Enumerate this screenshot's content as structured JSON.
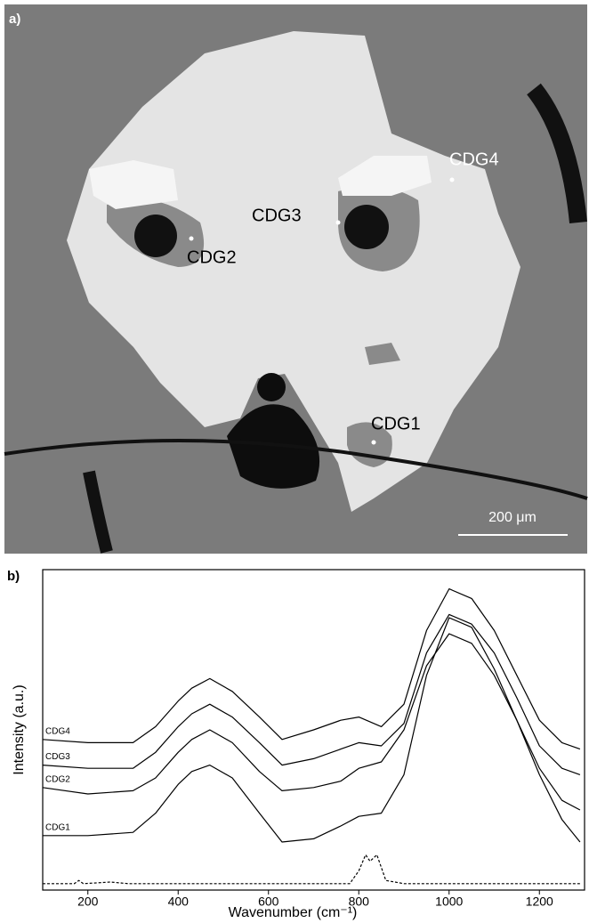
{
  "panel_a": {
    "label": "a)",
    "annotations": [
      "CDG1",
      "CDG2",
      "CDG3",
      "CDG4"
    ],
    "scale_bar": "200 μm"
  },
  "chart_data": {
    "type": "line",
    "label": "b)",
    "xlabel": "Wavenumber (cm⁻¹)",
    "ylabel": "Intensity (a.u.)",
    "xlim": [
      100,
      1300
    ],
    "xticks": [
      200,
      400,
      600,
      800,
      1000,
      1200
    ],
    "ylim": [
      0,
      100
    ],
    "series": [
      {
        "name": "CDG1",
        "color": "#000000",
        "x": [
          100,
          200,
          300,
          350,
          400,
          430,
          470,
          520,
          580,
          630,
          700,
          760,
          800,
          850,
          900,
          950,
          1000,
          1050,
          1100,
          1150,
          1200,
          1250,
          1290
        ],
        "values": [
          17,
          17,
          18,
          24,
          33,
          37,
          39,
          35,
          24,
          15,
          16,
          20,
          23,
          24,
          36,
          67,
          85,
          82,
          69,
          53,
          36,
          22,
          15
        ]
      },
      {
        "name": "CDG2",
        "color": "#000000",
        "x": [
          100,
          200,
          300,
          350,
          400,
          430,
          470,
          520,
          580,
          630,
          700,
          760,
          800,
          850,
          900,
          950,
          1000,
          1050,
          1100,
          1150,
          1200,
          1250,
          1290
        ],
        "values": [
          32,
          30,
          31,
          35,
          43,
          47,
          50,
          46,
          37,
          31,
          32,
          34,
          38,
          40,
          50,
          70,
          80,
          77,
          67,
          53,
          38,
          28,
          25
        ]
      },
      {
        "name": "CDG3",
        "color": "#000000",
        "x": [
          100,
          200,
          300,
          350,
          400,
          430,
          470,
          520,
          580,
          630,
          700,
          760,
          800,
          850,
          900,
          950,
          1000,
          1050,
          1100,
          1150,
          1200,
          1250,
          1290
        ],
        "values": [
          39,
          38,
          38,
          43,
          51,
          55,
          58,
          54,
          46,
          39,
          41,
          44,
          46,
          45,
          52,
          74,
          86,
          83,
          74,
          60,
          45,
          38,
          36
        ]
      },
      {
        "name": "CDG4",
        "color": "#000000",
        "x": [
          100,
          200,
          300,
          350,
          400,
          430,
          470,
          520,
          580,
          630,
          700,
          760,
          800,
          850,
          900,
          950,
          1000,
          1050,
          1100,
          1150,
          1200,
          1250,
          1290
        ],
        "values": [
          47,
          46,
          46,
          51,
          59,
          63,
          66,
          62,
          54,
          47,
          50,
          53,
          54,
          51,
          58,
          81,
          94,
          91,
          81,
          67,
          53,
          46,
          44
        ]
      },
      {
        "color": "#000000",
        "dashed": true,
        "x": [
          100,
          170,
          180,
          190,
          250,
          290,
          400,
          780,
          800,
          815,
          825,
          840,
          860,
          900,
          1290
        ],
        "values": [
          2,
          2,
          3,
          2,
          2.5,
          2,
          2,
          2,
          6,
          11,
          9,
          11,
          3,
          2,
          2
        ]
      }
    ]
  }
}
